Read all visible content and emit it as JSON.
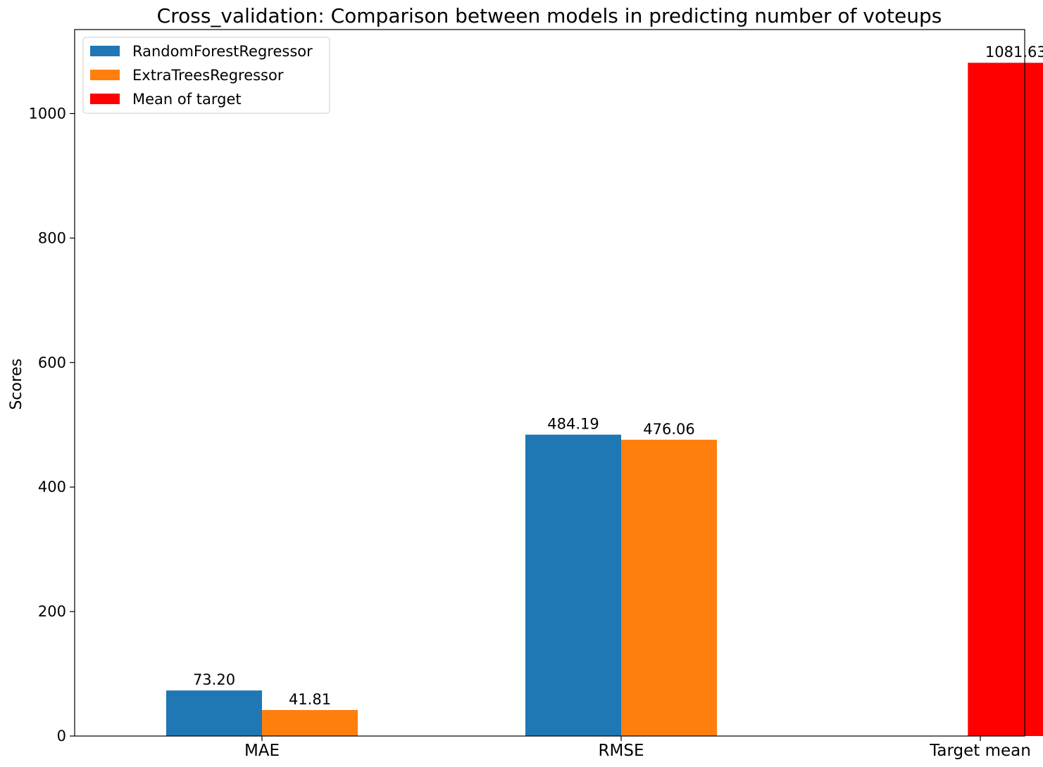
{
  "chart_data": {
    "type": "bar",
    "title": "Cross_validation: Comparison between models in predicting number of voteups",
    "xlabel": "",
    "ylabel": "Scores",
    "ylim": [
      0,
      1135
    ],
    "yticks": [
      0,
      200,
      400,
      600,
      800,
      1000
    ],
    "categories": [
      "MAE",
      "RMSE",
      "Target mean"
    ],
    "series": [
      {
        "name": "RandomForestRegressor",
        "color": "#1f77b4",
        "values": [
          73.2,
          484.19,
          null
        ],
        "labels": [
          "73.20",
          "484.19",
          null
        ]
      },
      {
        "name": "ExtraTreesRegressor",
        "color": "#ff7f0e",
        "values": [
          41.81,
          476.06,
          null
        ],
        "labels": [
          "41.81",
          "476.06",
          null
        ]
      },
      {
        "name": "Mean of target",
        "color": "#ff0000",
        "values": [
          null,
          null,
          1081.63
        ],
        "labels": [
          null,
          null,
          "1081.63"
        ]
      }
    ],
    "legend_position": "top-left",
    "grid": false
  }
}
